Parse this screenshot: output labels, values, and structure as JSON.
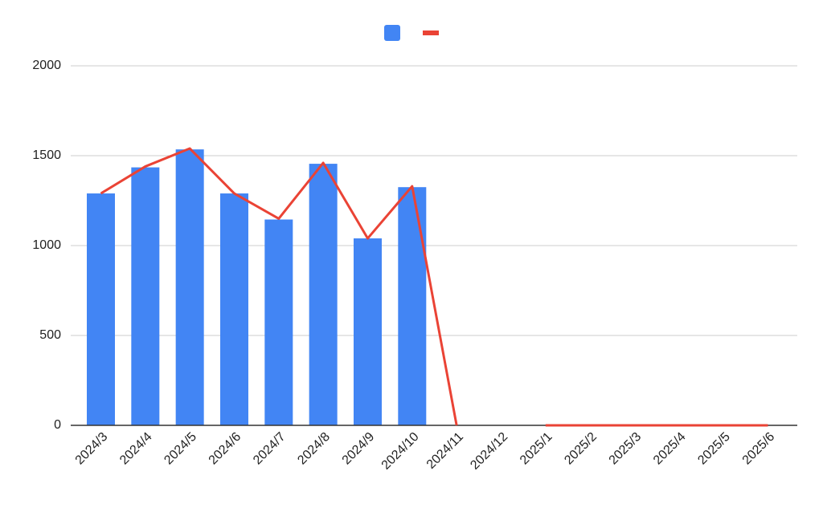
{
  "chart_data": {
    "type": "combo",
    "categories": [
      "2024/3",
      "2024/4",
      "2024/5",
      "2024/6",
      "2024/7",
      "2024/8",
      "2024/9",
      "2024/10",
      "2024/11",
      "2024/12",
      "2025/1",
      "2025/2",
      "2025/3",
      "2025/4",
      "2025/5",
      "2025/6"
    ],
    "series": [
      {
        "type": "bar",
        "color": "#4285f4",
        "values": [
          1290,
          1435,
          1535,
          1290,
          1145,
          1455,
          1040,
          1325,
          null,
          null,
          null,
          null,
          null,
          null,
          null,
          null
        ]
      },
      {
        "type": "line",
        "color": "#ea4335",
        "values": [
          1290,
          1440,
          1540,
          1290,
          1150,
          1460,
          1040,
          1330,
          0,
          null,
          0,
          0,
          0,
          0,
          0,
          0
        ]
      }
    ],
    "ylim": [
      0,
      2000
    ],
    "yticks": [
      0,
      500,
      1000,
      1500,
      2000
    ],
    "grid": true
  }
}
